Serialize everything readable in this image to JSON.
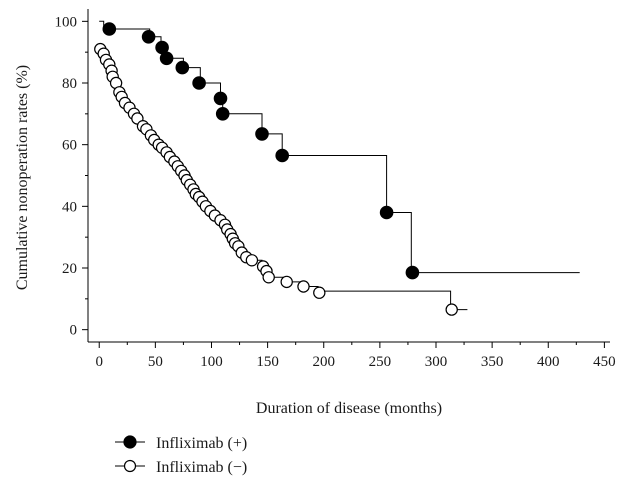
{
  "chart_data": {
    "type": "line",
    "subtype": "kaplan-meier step plot",
    "xlabel": "Duration of disease (months)",
    "ylabel": "Cumulative nonoperation rates (%)",
    "xlim": [
      -10,
      455
    ],
    "ylim": [
      -4,
      104
    ],
    "x_ticks": [
      0,
      50,
      100,
      150,
      200,
      250,
      300,
      350,
      400,
      450
    ],
    "y_ticks": [
      0,
      20,
      40,
      60,
      80,
      100
    ],
    "grid": false,
    "legend_position": "bottom-left, below plot",
    "series": [
      {
        "name": "Infliximab (+)",
        "marker": "filled-circle",
        "color": "#000000",
        "steps": [
          [
            0,
            100
          ],
          [
            4,
            97.5
          ],
          [
            45,
            95
          ],
          [
            55,
            91.5
          ],
          [
            60,
            88
          ],
          [
            75,
            85
          ],
          [
            90,
            80
          ],
          [
            108,
            75
          ],
          [
            110,
            70
          ],
          [
            145,
            63.5
          ],
          [
            163,
            56.5
          ],
          [
            256,
            38
          ],
          [
            278,
            18.5
          ],
          [
            428,
            18.5
          ]
        ],
        "markers": [
          [
            9,
            97.5
          ],
          [
            44,
            95
          ],
          [
            56,
            91.5
          ],
          [
            60,
            88
          ],
          [
            74,
            85
          ],
          [
            89,
            80
          ],
          [
            108,
            75
          ],
          [
            110,
            70
          ],
          [
            145,
            63.5
          ],
          [
            163,
            56.5
          ],
          [
            256,
            38
          ],
          [
            279,
            18.5
          ]
        ]
      },
      {
        "name": "Infliximab (−)",
        "marker": "open-circle",
        "color": "#000000",
        "steps": [
          [
            0,
            91
          ],
          [
            3,
            89
          ],
          [
            6,
            87.5
          ],
          [
            8,
            85.5
          ],
          [
            10,
            83.5
          ],
          [
            12,
            82
          ],
          [
            14,
            80
          ],
          [
            16,
            77
          ],
          [
            18,
            76
          ],
          [
            22,
            74
          ],
          [
            26,
            72.5
          ],
          [
            29,
            70.5
          ],
          [
            33,
            69
          ],
          [
            38,
            67
          ],
          [
            41,
            65.5
          ],
          [
            45,
            63.5
          ],
          [
            49,
            62
          ],
          [
            53,
            60.5
          ],
          [
            56,
            59.5
          ],
          [
            59,
            58
          ],
          [
            63,
            56.5
          ],
          [
            66,
            55
          ],
          [
            70,
            53.5
          ],
          [
            73,
            51.5
          ],
          [
            76,
            50
          ],
          [
            79,
            48
          ],
          [
            82,
            46.5
          ],
          [
            85,
            44.5
          ],
          [
            88,
            43
          ],
          [
            91,
            41.5
          ],
          [
            94,
            40
          ],
          [
            98,
            38.5
          ],
          [
            102,
            37
          ],
          [
            107,
            35.5
          ],
          [
            111,
            34
          ],
          [
            114,
            32.5
          ],
          [
            117,
            31
          ],
          [
            119,
            29.5
          ],
          [
            121,
            28
          ],
          [
            123,
            27
          ],
          [
            127,
            25
          ],
          [
            131,
            23.5
          ],
          [
            135,
            22.5
          ],
          [
            145,
            21
          ],
          [
            148,
            19
          ],
          [
            150,
            17
          ],
          [
            165,
            15.5
          ],
          [
            180,
            14
          ],
          [
            195,
            12.5
          ],
          [
            313,
            6.5
          ],
          [
            328,
            6.5
          ]
        ],
        "markers": [
          [
            1,
            91
          ],
          [
            4,
            89.5
          ],
          [
            6,
            87.5
          ],
          [
            9,
            86
          ],
          [
            11,
            84
          ],
          [
            12,
            82
          ],
          [
            15,
            80
          ],
          [
            18,
            77
          ],
          [
            20,
            75.5
          ],
          [
            23,
            73.5
          ],
          [
            27,
            72
          ],
          [
            31,
            70
          ],
          [
            34,
            68.5
          ],
          [
            39,
            66
          ],
          [
            42,
            65
          ],
          [
            46,
            63
          ],
          [
            49,
            61.5
          ],
          [
            53,
            60
          ],
          [
            56,
            59
          ],
          [
            60,
            57.5
          ],
          [
            63,
            56
          ],
          [
            67,
            54.5
          ],
          [
            70,
            53
          ],
          [
            73,
            51.5
          ],
          [
            76,
            50
          ],
          [
            78,
            48.5
          ],
          [
            81,
            47
          ],
          [
            84,
            45.5
          ],
          [
            86,
            44
          ],
          [
            89,
            43
          ],
          [
            92,
            41.5
          ],
          [
            95,
            40
          ],
          [
            99,
            38.5
          ],
          [
            103,
            37
          ],
          [
            108,
            35.5
          ],
          [
            112,
            34
          ],
          [
            114,
            32.5
          ],
          [
            117,
            31
          ],
          [
            119,
            29.5
          ],
          [
            121,
            28
          ],
          [
            124,
            27
          ],
          [
            127,
            25
          ],
          [
            131,
            23.5
          ],
          [
            136,
            22.5
          ],
          [
            146,
            20.5
          ],
          [
            149,
            19
          ],
          [
            151,
            17
          ],
          [
            167,
            15.5
          ],
          [
            182,
            14
          ],
          [
            196,
            12
          ],
          [
            314,
            6.5
          ]
        ]
      }
    ]
  }
}
